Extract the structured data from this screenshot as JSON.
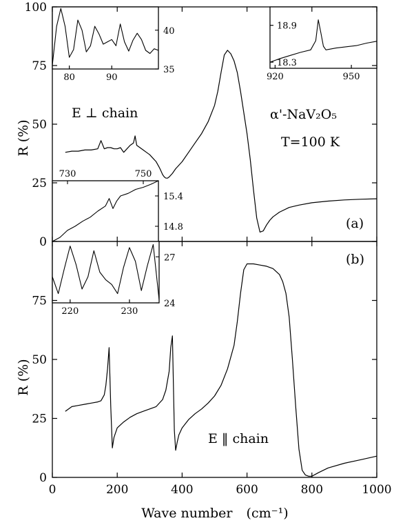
{
  "figure": {
    "x_label": "Wave number",
    "x_unit": "(cm⁻¹)",
    "y_label_top": "R (%)",
    "y_label_bottom": "R (%)"
  },
  "chart_data": [
    {
      "type": "line",
      "panel": "(a)",
      "annotations": [
        "E ⊥ chain",
        "α'-NaV₂O₅",
        "T=100 K"
      ],
      "xlim": [
        0,
        1000
      ],
      "ylim": [
        0,
        100
      ],
      "xticks": [
        0,
        200,
        400,
        600,
        800,
        1000
      ],
      "yticks": [
        0,
        25,
        50,
        75,
        100
      ],
      "series": [
        {
          "x": [
            40,
            60,
            80,
            100,
            120,
            140,
            150,
            160,
            170,
            180,
            190,
            200,
            210,
            220,
            230,
            240,
            250,
            255,
            260,
            270,
            280,
            290,
            300,
            310,
            320,
            330,
            335,
            340,
            345,
            350,
            355,
            360,
            370,
            380,
            400,
            420,
            440,
            460,
            480,
            500,
            510,
            520,
            530,
            540,
            550,
            560,
            570,
            580,
            590,
            600,
            610,
            620,
            630,
            640,
            650,
            660,
            670,
            680,
            700,
            730,
            760,
            800,
            850,
            900,
            950,
            1000
          ],
          "y": [
            38,
            38.5,
            38.5,
            39,
            39,
            39.5,
            43,
            39.5,
            40,
            40,
            39.5,
            39.5,
            40,
            38,
            39.5,
            41,
            42,
            45,
            41,
            40,
            39,
            38,
            37,
            35.5,
            34,
            31.5,
            30,
            28.5,
            27.5,
            27,
            27,
            27.5,
            29,
            31,
            34,
            38,
            42,
            46,
            51,
            58,
            64,
            72,
            79.5,
            81.5,
            80,
            77,
            72,
            64,
            55,
            46,
            35,
            22,
            10,
            4,
            4.5,
            7,
            9,
            10.5,
            12.5,
            14.5,
            15.5,
            16.5,
            17.2,
            17.7,
            18,
            18.2
          ]
        }
      ]
    },
    {
      "type": "line",
      "panel": "(b)",
      "annotations": [
        "E ‖ chain"
      ],
      "xlim": [
        0,
        1000
      ],
      "ylim": [
        0,
        100
      ],
      "xticks": [
        0,
        200,
        400,
        600,
        800,
        1000
      ],
      "yticks": [
        0,
        25,
        50,
        75
      ],
      "series": [
        {
          "x": [
            40,
            60,
            80,
            100,
            120,
            140,
            150,
            160,
            165,
            170,
            175,
            180,
            185,
            190,
            200,
            220,
            240,
            260,
            280,
            300,
            320,
            340,
            350,
            360,
            365,
            370,
            373,
            376,
            380,
            385,
            390,
            400,
            420,
            440,
            460,
            480,
            500,
            520,
            540,
            560,
            570,
            580,
            590,
            600,
            620,
            640,
            660,
            680,
            700,
            710,
            720,
            730,
            740,
            750,
            760,
            770,
            780,
            790,
            800,
            820,
            850,
            900,
            950,
            1000
          ],
          "y": [
            28,
            30,
            30.5,
            31,
            31.5,
            32,
            32.5,
            35,
            39,
            46,
            55,
            30,
            12.5,
            17,
            21,
            23.5,
            25.5,
            27,
            28,
            29,
            30,
            33,
            37,
            45,
            55,
            60,
            40,
            20,
            11.5,
            15,
            18,
            21,
            24.5,
            27,
            29,
            31.5,
            34.5,
            39,
            46,
            56,
            66,
            78,
            88,
            90.5,
            90.5,
            90,
            89.5,
            88.5,
            86,
            83,
            78,
            68,
            50,
            30,
            12,
            3,
            1,
            0.5,
            0.5,
            2,
            4,
            6,
            7.5,
            9
          ]
        }
      ]
    },
    {
      "type": "line",
      "panel": "(a) inset, top-left",
      "xlim": [
        76,
        101
      ],
      "ylim": [
        35,
        43
      ],
      "xticks": [
        80,
        90
      ],
      "yticks": [
        35,
        40
      ],
      "series": [
        {
          "x": [
            76,
            77,
            78,
            79,
            80,
            81,
            82,
            83,
            84,
            85,
            86,
            87,
            88,
            89,
            90,
            91,
            92,
            93,
            94,
            95,
            96,
            97,
            98,
            99,
            100,
            101
          ],
          "y": [
            35.5,
            40.5,
            42.8,
            40.5,
            36.5,
            37.5,
            41.3,
            40,
            37.2,
            38,
            40.5,
            39.5,
            38.2,
            38.5,
            38.8,
            38,
            40.8,
            38.5,
            37.3,
            38.7,
            39.6,
            38.8,
            37.4,
            37,
            37.6,
            37.4
          ]
        }
      ]
    },
    {
      "type": "line",
      "panel": "(a) inset, top-right",
      "xlim": [
        918,
        960
      ],
      "ylim": [
        18.2,
        19.2
      ],
      "xticks": [
        920,
        950
      ],
      "yticks": [
        18.3,
        18.9
      ],
      "series": [
        {
          "x": [
            918,
            922,
            926,
            930,
            934,
            936,
            937,
            938,
            939,
            940,
            944,
            948,
            952,
            956,
            960
          ],
          "y": [
            18.3,
            18.36,
            18.41,
            18.46,
            18.5,
            18.65,
            18.99,
            18.78,
            18.56,
            18.5,
            18.53,
            18.55,
            18.57,
            18.61,
            18.64
          ]
        }
      ]
    },
    {
      "type": "line",
      "panel": "(a) inset, bottom-left",
      "xlim": [
        726,
        754
      ],
      "ylim": [
        14.5,
        15.7
      ],
      "xticks": [
        730,
        750
      ],
      "yticks": [
        14.8,
        15.4
      ],
      "series": [
        {
          "x": [
            726,
            728,
            730,
            732,
            734,
            736,
            738,
            740,
            741,
            742,
            743,
            744,
            746,
            748,
            750,
            752,
            754
          ],
          "y": [
            14.5,
            14.58,
            14.72,
            14.8,
            14.9,
            14.98,
            15.1,
            15.2,
            15.35,
            15.15,
            15.3,
            15.4,
            15.45,
            15.53,
            15.57,
            15.63,
            15.7
          ]
        }
      ]
    },
    {
      "type": "line",
      "panel": "(b) inset",
      "xlim": [
        217,
        235
      ],
      "ylim": [
        24,
        28
      ],
      "xticks": [
        220,
        230
      ],
      "yticks": [
        24,
        27
      ],
      "series": [
        {
          "x": [
            217,
            218,
            219,
            220,
            221,
            222,
            223,
            224,
            225,
            226,
            227,
            228,
            229,
            230,
            231,
            232,
            233,
            234,
            235
          ],
          "y": [
            25.7,
            24.6,
            26.2,
            27.7,
            26.5,
            24.9,
            25.7,
            27.4,
            26,
            25.5,
            25.2,
            24.6,
            26.3,
            27.6,
            26.7,
            24.8,
            26.4,
            27.8,
            24.2
          ]
        }
      ]
    }
  ]
}
